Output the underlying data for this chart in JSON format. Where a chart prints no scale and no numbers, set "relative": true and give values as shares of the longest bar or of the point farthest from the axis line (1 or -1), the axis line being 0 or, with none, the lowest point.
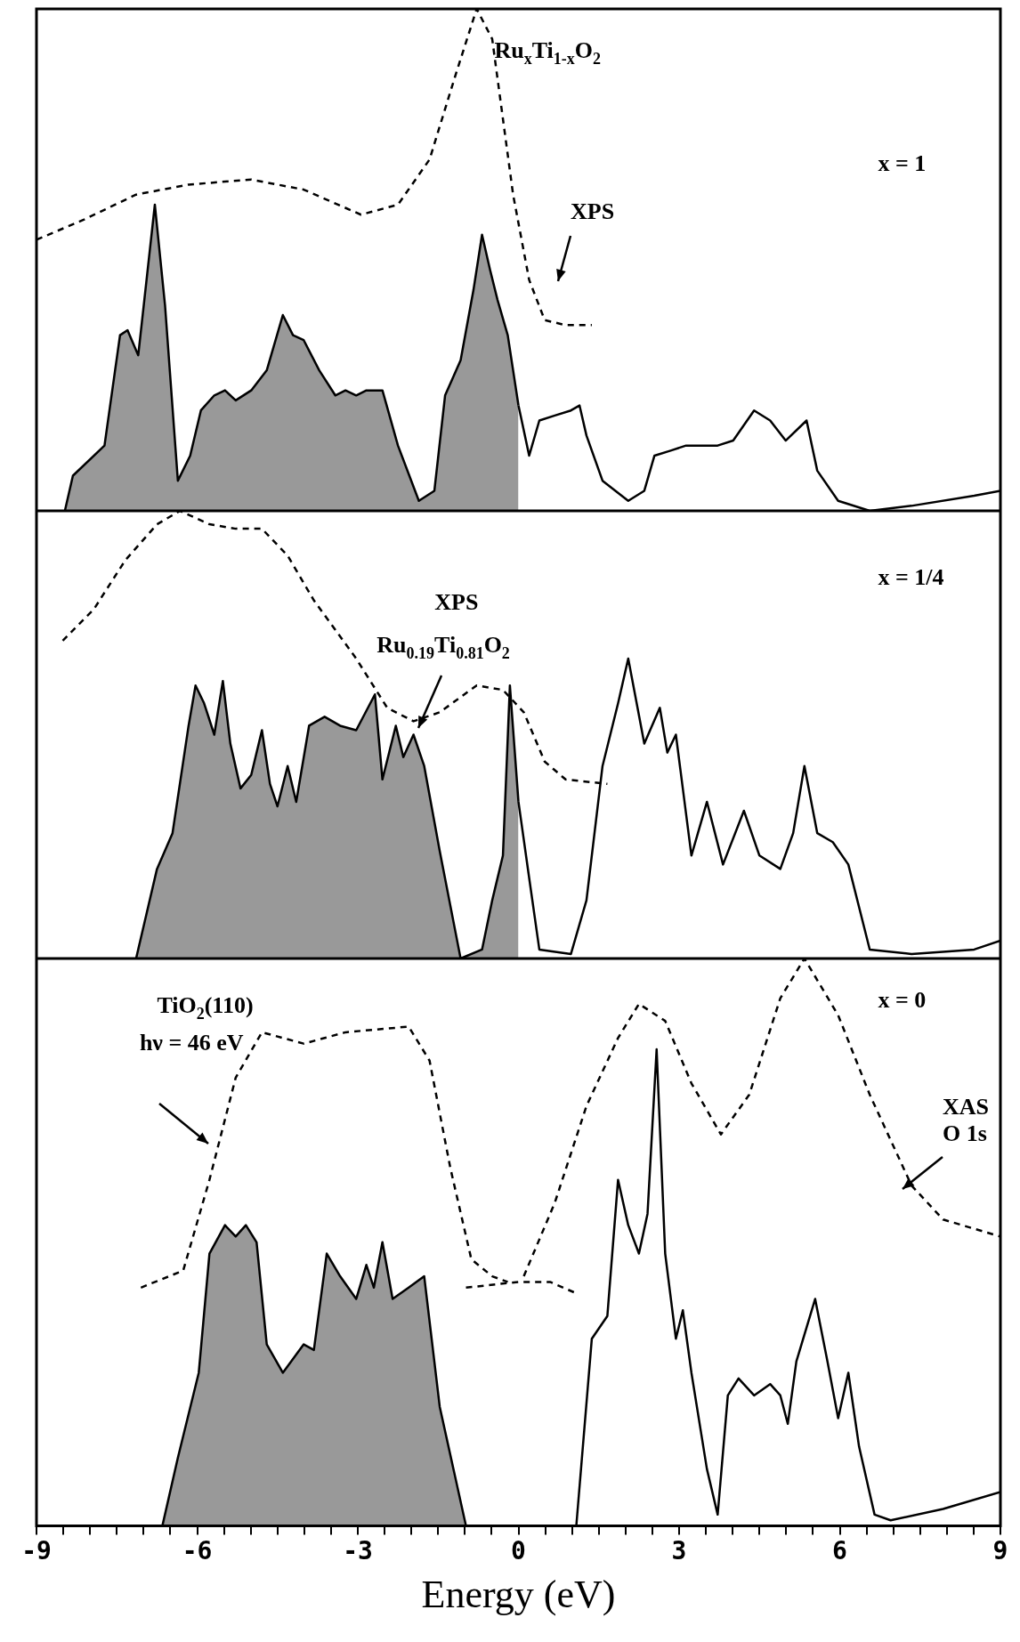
{
  "chart_data": [
    {
      "type": "line",
      "relative": true,
      "xlim": [
        -9,
        9
      ],
      "tick_labels": false,
      "grid": false,
      "legend": false,
      "marker": "none",
      "annotations": [
        "Ru$_{x}$Ti$_{1-x}$O$_{2}$",
        "x = 1",
        "XPS"
      ],
      "series": [
        {
          "type": "area",
          "color": "#000000",
          "x": [
            -8.47,
            -8.32,
            -7.73,
            -7.44,
            -7.3,
            -7.1,
            -6.79,
            -6.6,
            -6.36,
            -6.13,
            -5.93,
            -5.68,
            -5.48,
            -5.28,
            -4.99,
            -4.7,
            -4.4,
            -4.21,
            -4.01,
            -3.72,
            -3.42,
            -3.23,
            -3.03,
            -2.84,
            -2.54,
            -2.25,
            -1.86,
            -1.57,
            -1.37,
            -1.08,
            -0.84,
            -0.68,
            -0.53,
            -0.39,
            -0.2,
            0
          ],
          "values": [
            0,
            0.07,
            0.13,
            0.35,
            0.36,
            0.31,
            0.61,
            0.41,
            0.06,
            0.11,
            0.2,
            0.23,
            0.24,
            0.22,
            0.24,
            0.28,
            0.39,
            0.35,
            0.34,
            0.28,
            0.23,
            0.24,
            0.23,
            0.24,
            0.24,
            0.13,
            0.02,
            0.04,
            0.23,
            0.3,
            0.44,
            0.55,
            0.48,
            0.42,
            0.35,
            0.21
          ]
        },
        {
          "type": "line",
          "color": "#000000",
          "x": [
            0,
            0.2,
            0.39,
            0.68,
            0.98,
            1.14,
            1.27,
            1.57,
            2.05,
            2.35,
            2.54,
            2.84,
            3.13,
            3.42,
            3.72,
            4.01,
            4.4,
            4.7,
            4.99,
            5.38,
            5.58,
            5.97,
            6.56,
            7.34,
            8.51,
            9
          ],
          "values": [
            0.21,
            0.11,
            0.18,
            0.19,
            0.2,
            0.21,
            0.15,
            0.06,
            0.02,
            0.04,
            0.11,
            0.12,
            0.13,
            0.13,
            0.13,
            0.14,
            0.2,
            0.18,
            0.14,
            0.18,
            0.08,
            0.02,
            0,
            0.01,
            0.03,
            0.04
          ]
        },
        {
          "type": "line",
          "line_style": "dashed",
          "color": "#000000",
          "x": [
            -9,
            -8.12,
            -7.14,
            -6.16,
            -4.99,
            -4.01,
            -2.94,
            -2.25,
            -1.66,
            -1.17,
            -0.78,
            -0.49,
            -0.1,
            0.2,
            0.49,
            0.88,
            1.37
          ],
          "values": [
            0.54,
            0.58,
            0.63,
            0.65,
            0.66,
            0.64,
            0.59,
            0.61,
            0.7,
            0.87,
            1,
            0.94,
            0.63,
            0.46,
            0.38,
            0.37,
            0.37
          ]
        }
      ]
    },
    {
      "type": "line",
      "relative": true,
      "xlim": [
        -9,
        9
      ],
      "tick_labels": false,
      "grid": false,
      "legend": false,
      "marker": "none",
      "annotations": [
        "x = 1/4",
        "XPS",
        "Ru$_{0.19}$Ti$_{0.81}$O$_{2}$"
      ],
      "series": [
        {
          "type": "area",
          "color": "#000000",
          "x": [
            -7.14,
            -6.75,
            -6.46,
            -6.16,
            -6.03,
            -5.87,
            -5.68,
            -5.52,
            -5.38,
            -5.19,
            -4.99,
            -4.79,
            -4.64,
            -4.5,
            -4.31,
            -4.15,
            -3.91,
            -3.62,
            -3.33,
            -3.03,
            -2.68,
            -2.54,
            -2.29,
            -2.15,
            -1.96,
            -1.76,
            -1.47,
            -1.08,
            -0.68,
            -0.49,
            -0.29,
            -0.16,
            0
          ],
          "values": [
            0,
            0.2,
            0.28,
            0.52,
            0.61,
            0.57,
            0.5,
            0.62,
            0.48,
            0.38,
            0.41,
            0.51,
            0.39,
            0.34,
            0.43,
            0.35,
            0.52,
            0.54,
            0.52,
            0.51,
            0.59,
            0.4,
            0.52,
            0.45,
            0.5,
            0.43,
            0.24,
            0,
            0.02,
            0.13,
            0.23,
            0.61,
            0.35
          ]
        },
        {
          "type": "line",
          "color": "#000000",
          "x": [
            0,
            0.2,
            0.39,
            0.98,
            1.27,
            1.57,
            1.86,
            2.05,
            2.35,
            2.64,
            2.78,
            2.94,
            3.23,
            3.52,
            3.82,
            4.21,
            4.5,
            4.89,
            5.13,
            5.34,
            5.58,
            5.87,
            6.16,
            6.56,
            7.34,
            8.51,
            9
          ],
          "values": [
            0.35,
            0.18,
            0.02,
            0.01,
            0.13,
            0.43,
            0.57,
            0.67,
            0.48,
            0.56,
            0.46,
            0.5,
            0.23,
            0.35,
            0.21,
            0.33,
            0.23,
            0.2,
            0.28,
            0.43,
            0.28,
            0.26,
            0.21,
            0.02,
            0.01,
            0.02,
            0.04
          ]
        },
        {
          "type": "line",
          "line_style": "dashed",
          "color": "#000000",
          "x": [
            -8.51,
            -7.93,
            -7.34,
            -6.75,
            -6.32,
            -5.77,
            -5.28,
            -4.79,
            -4.31,
            -3.82,
            -3.03,
            -2.45,
            -1.96,
            -1.47,
            -0.78,
            -0.29,
            0.1,
            0.49,
            0.88,
            1.66
          ],
          "values": [
            0.71,
            0.78,
            0.89,
            0.97,
            1,
            0.97,
            0.96,
            0.96,
            0.9,
            0.8,
            0.67,
            0.56,
            0.53,
            0.55,
            0.61,
            0.6,
            0.55,
            0.44,
            0.4,
            0.39
          ]
        }
      ]
    },
    {
      "type": "line",
      "relative": true,
      "xlim": [
        -9,
        9
      ],
      "xlabel": "Energy (eV)",
      "tick_labels": "x",
      "grid": false,
      "legend": false,
      "marker": "none",
      "xticks": [
        -9,
        {
          "value": -8.5,
          "label": null
        },
        {
          "value": -8,
          "label": null
        },
        {
          "value": -7.5,
          "label": null
        },
        {
          "value": -7,
          "label": null
        },
        {
          "value": -6.5,
          "label": null
        },
        -6,
        {
          "value": -5.5,
          "label": null
        },
        {
          "value": -5,
          "label": null
        },
        {
          "value": -4.5,
          "label": null
        },
        {
          "value": -4,
          "label": null
        },
        {
          "value": -3.5,
          "label": null
        },
        -3,
        {
          "value": -2.5,
          "label": null
        },
        {
          "value": -2,
          "label": null
        },
        {
          "value": -1.5,
          "label": null
        },
        {
          "value": -1,
          "label": null
        },
        {
          "value": -0.5,
          "label": null
        },
        0,
        {
          "value": 0.5,
          "label": null
        },
        {
          "value": 1,
          "label": null
        },
        {
          "value": 1.5,
          "label": null
        },
        {
          "value": 2,
          "label": null
        },
        {
          "value": 2.5,
          "label": null
        },
        3,
        {
          "value": 3.5,
          "label": null
        },
        {
          "value": 4,
          "label": null
        },
        {
          "value": 4.5,
          "label": null
        },
        {
          "value": 5,
          "label": null
        },
        {
          "value": 5.5,
          "label": null
        },
        6,
        {
          "value": 6.5,
          "label": null
        },
        {
          "value": 7,
          "label": null
        },
        {
          "value": 7.5,
          "label": null
        },
        {
          "value": 8,
          "label": null
        },
        {
          "value": 8.5,
          "label": null
        },
        9
      ],
      "annotations": [
        "TiO$_{2}$(110)",
        "hν = 46 eV",
        "x = 0",
        "XAS",
        "O 1s"
      ],
      "series": [
        {
          "type": "area",
          "color": "#000000",
          "x": [
            -6.65,
            -6.36,
            -5.97,
            -5.77,
            -5.48,
            -5.28,
            -5.09,
            -4.89,
            -4.7,
            -4.4,
            -4.01,
            -3.82,
            -3.58,
            -3.33,
            -3.03,
            -2.84,
            -2.7,
            -2.54,
            -2.35,
            -2.05,
            -1.76,
            -1.47,
            -0.98
          ],
          "values": [
            0,
            0.12,
            0.27,
            0.48,
            0.53,
            0.51,
            0.53,
            0.5,
            0.32,
            0.27,
            0.32,
            0.31,
            0.48,
            0.44,
            0.4,
            0.46,
            0.42,
            0.5,
            0.4,
            0.42,
            0.44,
            0.21,
            0
          ]
        },
        {
          "type": "line",
          "color": "#000000",
          "x": [
            -0.98,
            1.08,
            1.37,
            1.66,
            1.86,
            2.05,
            2.25,
            2.41,
            2.58,
            2.74,
            2.94,
            3.07,
            3.23,
            3.52,
            3.72,
            3.91,
            4.11,
            4.4,
            4.7,
            4.89,
            5.03,
            5.19,
            5.54,
            5.77,
            5.97,
            6.16,
            6.36,
            6.65,
            6.95,
            7.93,
            9
          ],
          "values": [
            0,
            0,
            0.33,
            0.37,
            0.61,
            0.53,
            0.48,
            0.55,
            0.84,
            0.48,
            0.33,
            0.38,
            0.27,
            0.1,
            0.02,
            0.23,
            0.26,
            0.23,
            0.25,
            0.23,
            0.18,
            0.29,
            0.4,
            0.29,
            0.19,
            0.27,
            0.14,
            0.02,
            0.01,
            0.03,
            0.06
          ]
        },
        {
          "type": "line",
          "line_style": "dashed",
          "color": "#000000",
          "x": [
            -7.05,
            -6.26,
            -5.77,
            -5.28,
            -4.79,
            -4.01,
            -3.23,
            -2.05,
            -1.66,
            -1.27,
            -0.88,
            -0.49,
            -0.2
          ],
          "values": [
            0.42,
            0.45,
            0.61,
            0.79,
            0.87,
            0.85,
            0.87,
            0.88,
            0.82,
            0.63,
            0.47,
            0.44,
            0.43
          ]
        },
        {
          "type": "line",
          "line_style": "dashed",
          "color": "#000000",
          "x": [
            -0.98,
            0,
            0.59,
            1.08
          ],
          "values": [
            0.42,
            0.43,
            0.43,
            0.41
          ]
        },
        {
          "type": "line",
          "line_style": "dashed",
          "color": "#000000",
          "x": [
            0.1,
            0.68,
            1.27,
            1.86,
            2.25,
            2.74,
            3.23,
            3.78,
            4.31,
            4.89,
            5.34,
            5.97,
            6.56,
            7.34,
            7.93,
            9
          ],
          "values": [
            0.44,
            0.57,
            0.74,
            0.86,
            0.92,
            0.89,
            0.78,
            0.69,
            0.76,
            0.93,
            1,
            0.9,
            0.76,
            0.6,
            0.54,
            0.51
          ]
        }
      ]
    }
  ]
}
